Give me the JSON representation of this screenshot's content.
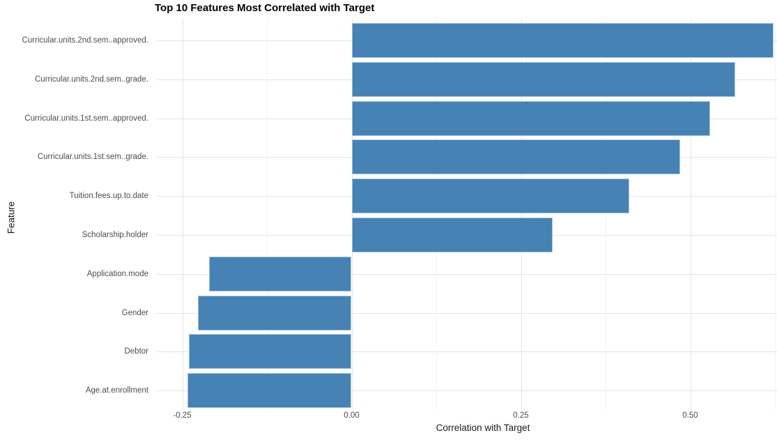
{
  "chart_data": {
    "type": "bar",
    "orientation": "horizontal",
    "title": "Top 10 Features Most Correlated with Target",
    "xlabel": "Correlation with Target",
    "ylabel": "Feature",
    "categories": [
      "Curricular.units.2nd.sem..approved.",
      "Curricular.units.2nd.sem..grade.",
      "Curricular.units.1st.sem..approved.",
      "Curricular.units.1st.sem..grade.",
      "Tuition.fees.up.to.date",
      "Scholarship.holder",
      "Application.mode",
      "Gender",
      "Debtor",
      "Age.at.enrollment"
    ],
    "values": [
      0.623,
      0.566,
      0.529,
      0.485,
      0.41,
      0.297,
      -0.21,
      -0.227,
      -0.24,
      -0.242
    ],
    "xlim": [
      -0.285,
      0.628
    ],
    "x_major_ticks": [
      -0.25,
      0.0,
      0.25,
      0.5
    ],
    "x_tick_labels": [
      "-0.25",
      "0.00",
      "0.25",
      "0.50"
    ],
    "x_minor_ticks": [
      -0.125,
      0.125,
      0.375,
      0.625
    ],
    "grid": true,
    "legend": "none",
    "colors": {
      "bar_fill": "#4682b4",
      "bar_edge": "#aac7e0",
      "major_gridline": "#e4e4e4",
      "minor_gridline": "#f2f2f2",
      "background": "#ffffff",
      "tick_label": "#4d4d4d",
      "axis_title": "#1a1a1a",
      "title": "#000000"
    }
  }
}
